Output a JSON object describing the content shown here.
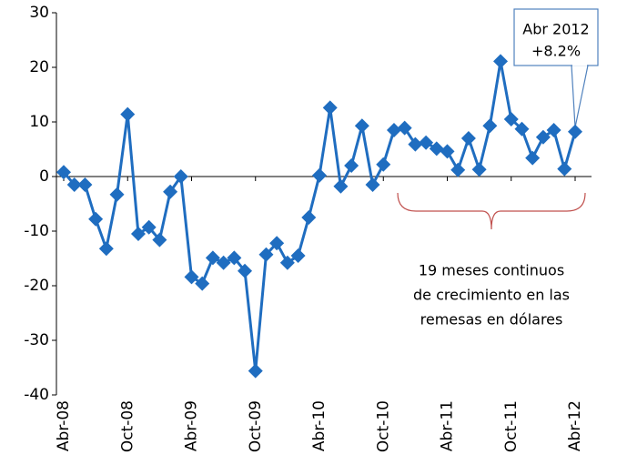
{
  "chart_data": {
    "type": "line",
    "categories": [
      "Abr-08",
      null,
      null,
      null,
      null,
      null,
      "Oct-08",
      null,
      null,
      null,
      null,
      null,
      "Abr-09",
      null,
      null,
      null,
      null,
      null,
      "Oct-09",
      null,
      null,
      null,
      null,
      null,
      "Abr-10",
      null,
      null,
      null,
      null,
      null,
      "Oct-10",
      null,
      null,
      null,
      null,
      null,
      "Abr-11",
      null,
      null,
      null,
      null,
      null,
      "Oct-11",
      null,
      null,
      null,
      null,
      null,
      "Abr-12"
    ],
    "series": [
      {
        "color": "#1f6dc0",
        "values": [
          0.8,
          -1.5,
          -1.5,
          -7.8,
          -13.2,
          -3.3,
          11.4,
          -10.5,
          -9.3,
          -11.6,
          -2.8,
          0,
          -18.4,
          -19.6,
          -14.9,
          -15.8,
          -14.9,
          -17.3,
          -35.6,
          -14.3,
          -12.2,
          -15.8,
          -14.5,
          -7.5,
          0.2,
          12.6,
          -1.8,
          2,
          9.3,
          -1.5,
          2.2,
          8.5,
          8.9,
          5.9,
          6.2,
          5.1,
          4.6,
          1.2,
          7,
          1.3,
          9.3,
          21.1,
          10.5,
          8.7,
          3.4,
          7.2,
          8.5,
          1.4,
          8.2
        ]
      }
    ],
    "ylim": [
      -40,
      30
    ],
    "yticks": [
      -40,
      -30,
      -20,
      -10,
      0,
      10,
      20,
      30
    ],
    "grid": false,
    "annotations": {
      "callout": [
        "Abr 2012",
        "+8.2%"
      ],
      "brace_note": [
        "19 meses continuos",
        "de crecimiento en las",
        "remesas en dólares"
      ]
    }
  }
}
